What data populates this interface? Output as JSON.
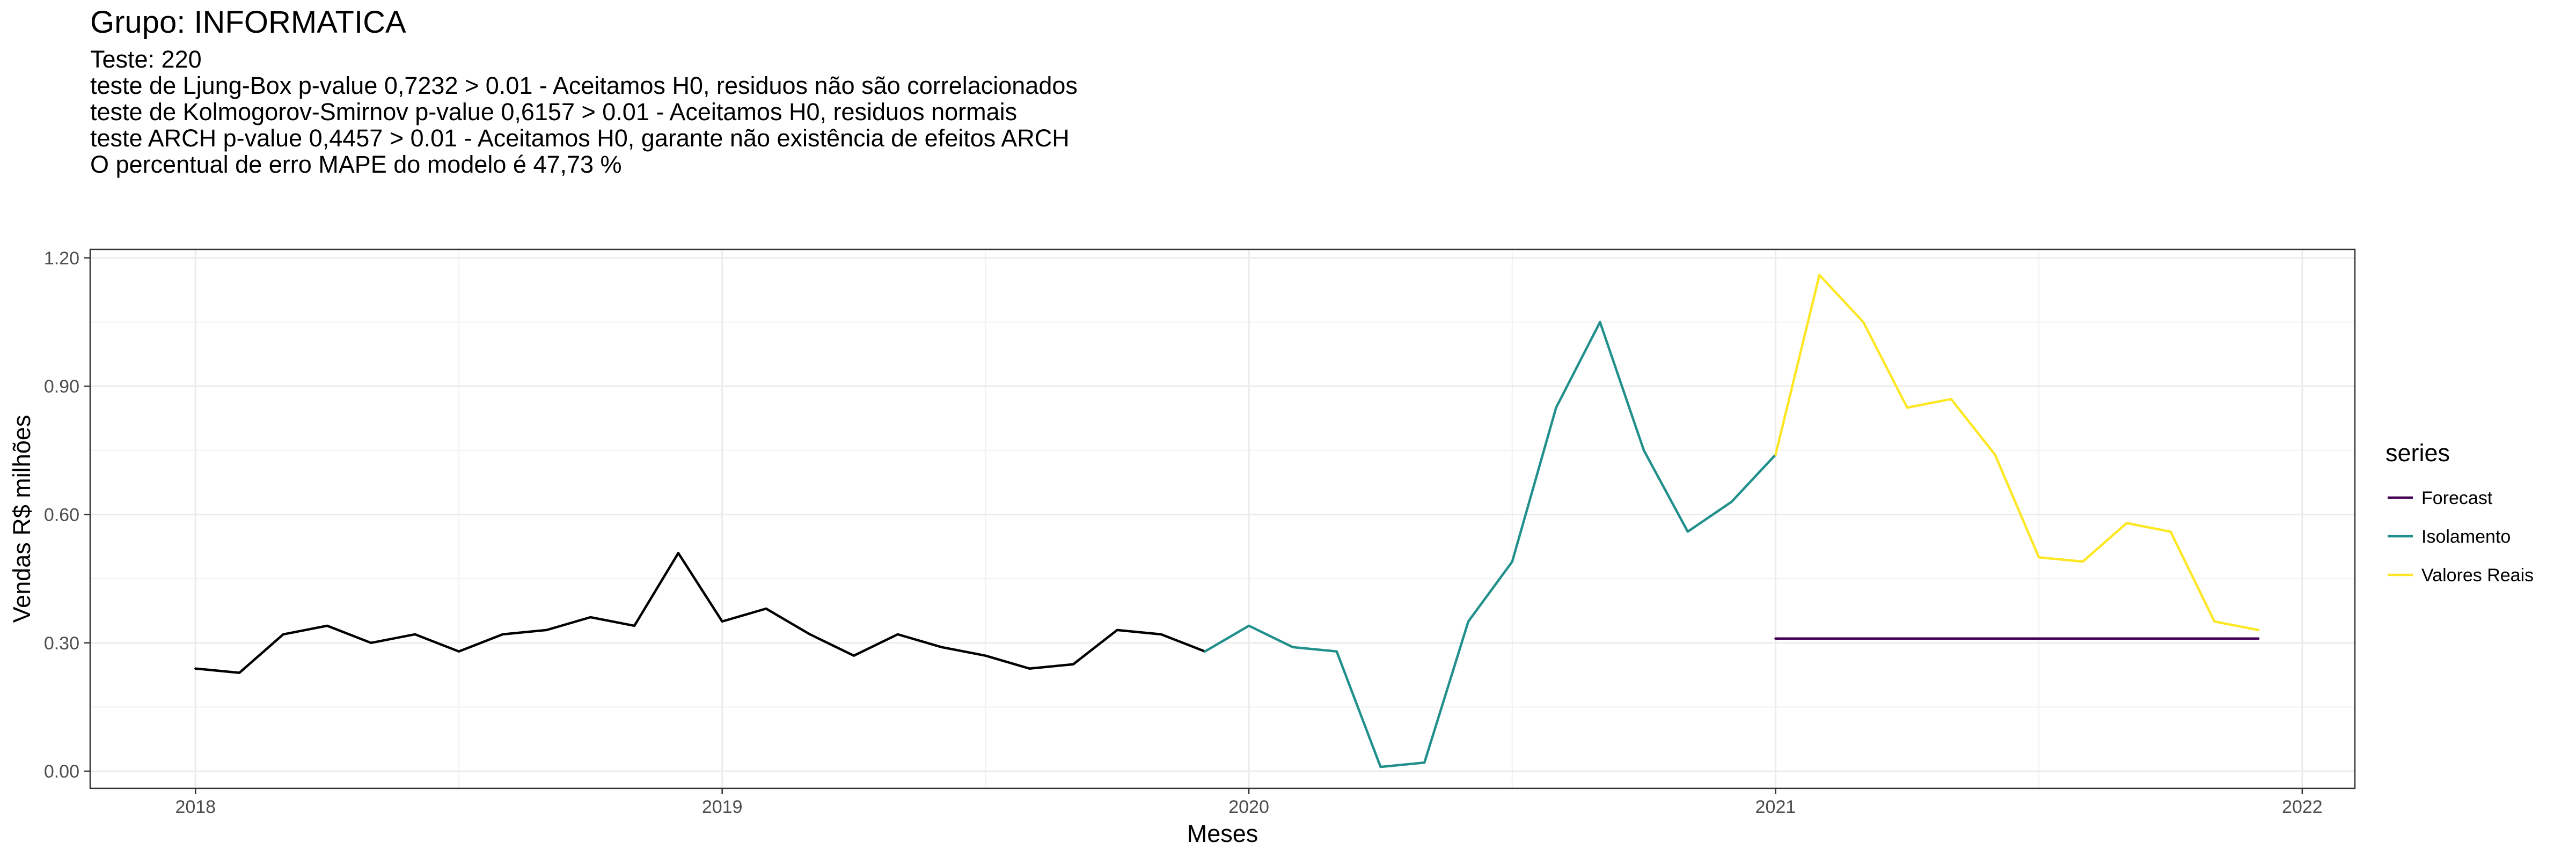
{
  "title": "Grupo: INFORMATICA",
  "subtitle_lines": [
    "Teste: 220",
    "teste de Ljung-Box p-value 0,7232 > 0.01 - Aceitamos H0, residuos não são correlacionados",
    "teste de Kolmogorov-Smirnov p-value 0,6157 > 0.01 - Aceitamos H0, residuos normais",
    "teste ARCH p-value 0,4457 > 0.01 - Aceitamos H0, garante não existência de efeitos ARCH",
    "O percentual de erro MAPE do modelo é 47,73 %"
  ],
  "chart_data": {
    "type": "line",
    "xlabel": "Meses",
    "ylabel": "Vendas R$ milhões",
    "xlim": [
      2017.8,
      2022.1
    ],
    "ylim": [
      -0.04,
      1.22
    ],
    "x_ticks": [
      2018,
      2019,
      2020,
      2021,
      2022
    ],
    "x_tick_labels": [
      "2018",
      "2019",
      "2020",
      "2021",
      "2022"
    ],
    "y_ticks": [
      0,
      0.3,
      0.6,
      0.9,
      1.2
    ],
    "y_tick_labels": [
      "0.00",
      "0.30",
      "0.60",
      "0.90",
      "1.20"
    ],
    "grid": true,
    "legend": {
      "title": "series",
      "position": "right"
    },
    "series": [
      {
        "name": "",
        "in_legend": false,
        "color": "#000000",
        "x_start": 2018.0,
        "values": [
          0.24,
          0.23,
          0.32,
          0.34,
          0.3,
          0.32,
          0.28,
          0.32,
          0.33,
          0.36,
          0.34,
          0.51,
          0.35,
          0.38,
          0.32,
          0.27,
          0.32,
          0.29,
          0.27,
          0.24,
          0.25,
          0.33,
          0.32,
          0.28
        ]
      },
      {
        "name": "Forecast",
        "in_legend": true,
        "color": "#440154",
        "x_start": 2021.0,
        "values": [
          0.31,
          0.31,
          0.31,
          0.31,
          0.31,
          0.31,
          0.31,
          0.31,
          0.31,
          0.31,
          0.31,
          0.31
        ]
      },
      {
        "name": "Isolamento",
        "in_legend": true,
        "color": "#21908C",
        "x_start": 2019.9167,
        "values": [
          0.28,
          0.34,
          0.29,
          0.28,
          0.01,
          0.02,
          0.35,
          0.49,
          0.85,
          1.05,
          0.75,
          0.56,
          0.63,
          0.74
        ]
      },
      {
        "name": "Valores Reais",
        "in_legend": true,
        "color": "#FDE725",
        "x_start": 2021.0,
        "values": [
          0.74,
          1.16,
          1.05,
          0.85,
          0.87,
          0.74,
          0.5,
          0.49,
          0.58,
          0.56,
          0.35,
          0.33
        ]
      }
    ]
  }
}
